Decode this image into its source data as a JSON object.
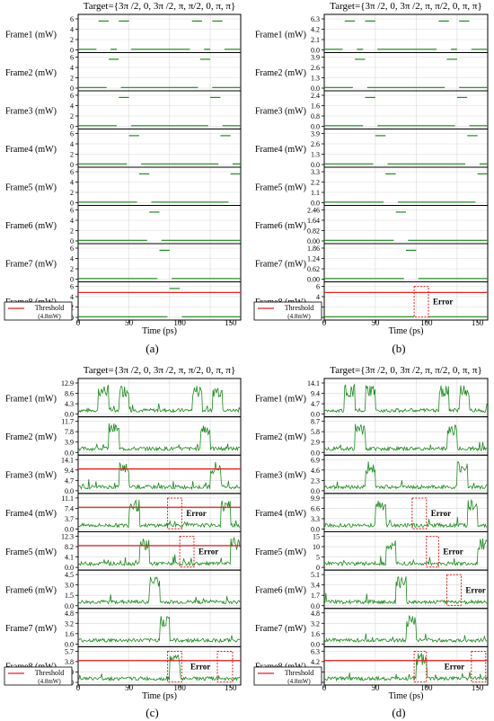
{
  "figure": {
    "title": "Target={3π /2, 0, 3π /2, π, π/2, 0, π, π}",
    "xlabel": "Time (ps)",
    "legend_label": "Threshold",
    "legend_sub": "(4.8mW)",
    "error_label": "Error",
    "colors": {
      "trace": "#1b8a1b",
      "threshold": "#e02020",
      "error": "#e02020",
      "axis": "#000000",
      "grid": "#d9d9d9"
    },
    "frame_labels": [
      "Frame1 (mW)",
      "Frame2 (mW)",
      "Frame3 (mW)",
      "Frame4 (mW)",
      "Frame5 (mW)",
      "Frame6 (mW)",
      "Frame7 (mW)",
      "Frame8 (mW)"
    ]
  },
  "chart_data": [
    {
      "panel": "(a)",
      "type": "line",
      "xlim": [
        0,
        160
      ],
      "xticks": [
        "0",
        "50",
        "100",
        "150"
      ],
      "yticks": [
        [
          "6",
          "4",
          "2",
          "0"
        ],
        [
          "6",
          "4",
          "2",
          "0"
        ],
        [
          "6",
          "4",
          "2",
          "0"
        ],
        [
          "6",
          "4",
          "2",
          "0"
        ],
        [
          "6",
          "4",
          "2",
          "0"
        ],
        [
          "6",
          "4",
          "2",
          "0"
        ],
        [
          "6",
          "4",
          "2",
          "0"
        ],
        [
          "6",
          "4",
          "2",
          "0"
        ]
      ],
      "threshold_frames": [
        8
      ],
      "threshold": 4.8,
      "errors": []
    },
    {
      "panel": "(b)",
      "type": "line",
      "xlim": [
        0,
        160
      ],
      "xticks": [
        "0",
        "50",
        "100",
        "150"
      ],
      "yticks": [
        [
          "6.3",
          "4.2",
          "2.1",
          "0.0"
        ],
        [
          "3.9",
          "2.6",
          "1.3",
          "0.0"
        ],
        [
          "2.4",
          "1.6",
          "0.8",
          "0.0"
        ],
        [
          "3.9",
          "2.6",
          "1.3",
          "0.0"
        ],
        [
          "3.3",
          "2.2",
          "1.1",
          "0.0"
        ],
        [
          "2.46",
          "1.64",
          "0.82",
          "0.00"
        ],
        [
          "1.86",
          "1.24",
          "0.62",
          "0.00"
        ],
        [
          "6",
          "4",
          "2",
          "0"
        ]
      ],
      "threshold_frames": [
        8
      ],
      "threshold": 4.8,
      "errors": [
        {
          "frame": 8,
          "x": [
            88,
            102
          ]
        }
      ]
    },
    {
      "panel": "(c)",
      "type": "line",
      "xlim": [
        0,
        160
      ],
      "xticks": [
        "0",
        "50",
        "100",
        "150"
      ],
      "yticks": [
        [
          "12.9",
          "8.6",
          "4.3",
          "0.0"
        ],
        [
          "11.7",
          "7.8",
          "3.9",
          "0.0"
        ],
        [
          "14.1",
          "9.4",
          "4.7",
          "0.0"
        ],
        [
          "11.1",
          "7.4",
          "3.7",
          "0.0"
        ],
        [
          "12.3",
          "8.2",
          "4.1",
          "0.0"
        ],
        [
          "4.5",
          "3.0",
          "1.5",
          "0.0"
        ],
        [
          "4.8",
          "3.2",
          "1.6",
          "0.0"
        ],
        [
          "5.7",
          "3.8",
          "1.9",
          "0.0"
        ]
      ],
      "threshold_frames": [
        3,
        4,
        5,
        8
      ],
      "threshold": 4.8,
      "errors": [
        {
          "frame": 4,
          "x": [
            88,
            102
          ]
        },
        {
          "frame": 5,
          "x": [
            100,
            114
          ]
        },
        {
          "frame": 8,
          "x": [
            88,
            102
          ]
        },
        {
          "frame": 8,
          "x": [
            137,
            152
          ]
        }
      ]
    },
    {
      "panel": "(d)",
      "type": "line",
      "xlim": [
        0,
        160
      ],
      "xticks": [
        "0",
        "50",
        "100",
        "150"
      ],
      "yticks": [
        [
          "14.1",
          "9.4",
          "4.7",
          "0.0"
        ],
        [
          "8.7",
          "5.8",
          "2.9",
          "0.0"
        ],
        [
          "6.9",
          "4.6",
          "2.3",
          "0.0"
        ],
        [
          "9.9",
          "6.6",
          "3.3",
          "0.0"
        ],
        [
          "15",
          "10",
          "5",
          "0"
        ],
        [
          "5.1",
          "3.4",
          "1.7",
          "0.0"
        ],
        [
          "4.8",
          "3.2",
          "1.6",
          "0.0"
        ],
        [
          "6.3",
          "4.2",
          "2.1",
          "0.0"
        ]
      ],
      "threshold_frames": [
        8
      ],
      "threshold": 4.8,
      "errors": [
        {
          "frame": 4,
          "x": [
            86,
            100
          ]
        },
        {
          "frame": 5,
          "x": [
            100,
            112
          ]
        },
        {
          "frame": 6,
          "x": [
            120,
            134
          ]
        },
        {
          "frame": 8,
          "x": [
            88,
            100
          ]
        },
        {
          "frame": 8,
          "x": [
            144,
            158
          ]
        }
      ]
    }
  ]
}
